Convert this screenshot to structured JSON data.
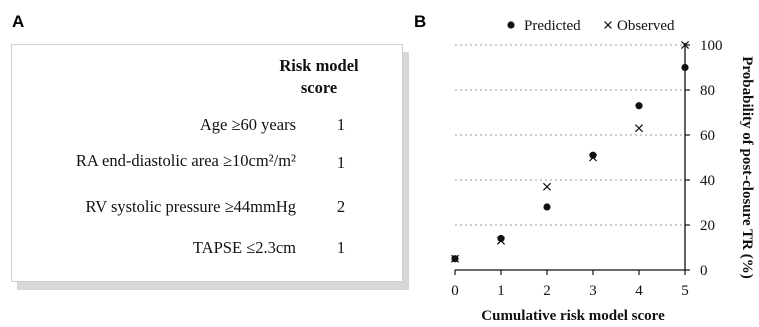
{
  "panel_a": {
    "letter": "A",
    "header_line1": "Risk model",
    "header_line2": "score",
    "rows": [
      {
        "label": "Age ≥60 years",
        "score": "1"
      },
      {
        "label": "RA end-diastolic area ≥10cm²/m²",
        "score": "1"
      },
      {
        "label": "RV systolic pressure ≥44mmHg",
        "score": "2"
      },
      {
        "label": "TAPSE ≤2.3cm",
        "score": "1"
      }
    ]
  },
  "panel_b": {
    "letter": "B"
  },
  "chart_data": {
    "type": "scatter",
    "xlabel": "Cumulative risk model score",
    "ylabel": "Probability of post-closure TR (%)",
    "x": [
      0,
      1,
      2,
      3,
      4,
      5
    ],
    "xlim": [
      0,
      5
    ],
    "ylim": [
      0,
      100
    ],
    "xticks": [
      0,
      1,
      2,
      3,
      4,
      5
    ],
    "yticks": [
      0,
      20,
      40,
      60,
      80,
      100
    ],
    "y_axis_side": "right",
    "grid": "horizontal dotted",
    "legend_position": "top",
    "series": [
      {
        "name": "Predicted",
        "marker": "dot",
        "values": [
          5,
          14,
          28,
          51,
          73,
          90
        ]
      },
      {
        "name": "Observed",
        "marker": "x",
        "values": [
          5,
          13,
          37,
          50,
          63,
          100
        ]
      }
    ],
    "colors": {
      "marker": "#111111",
      "grid": "#999999",
      "axis": "#111111"
    }
  }
}
